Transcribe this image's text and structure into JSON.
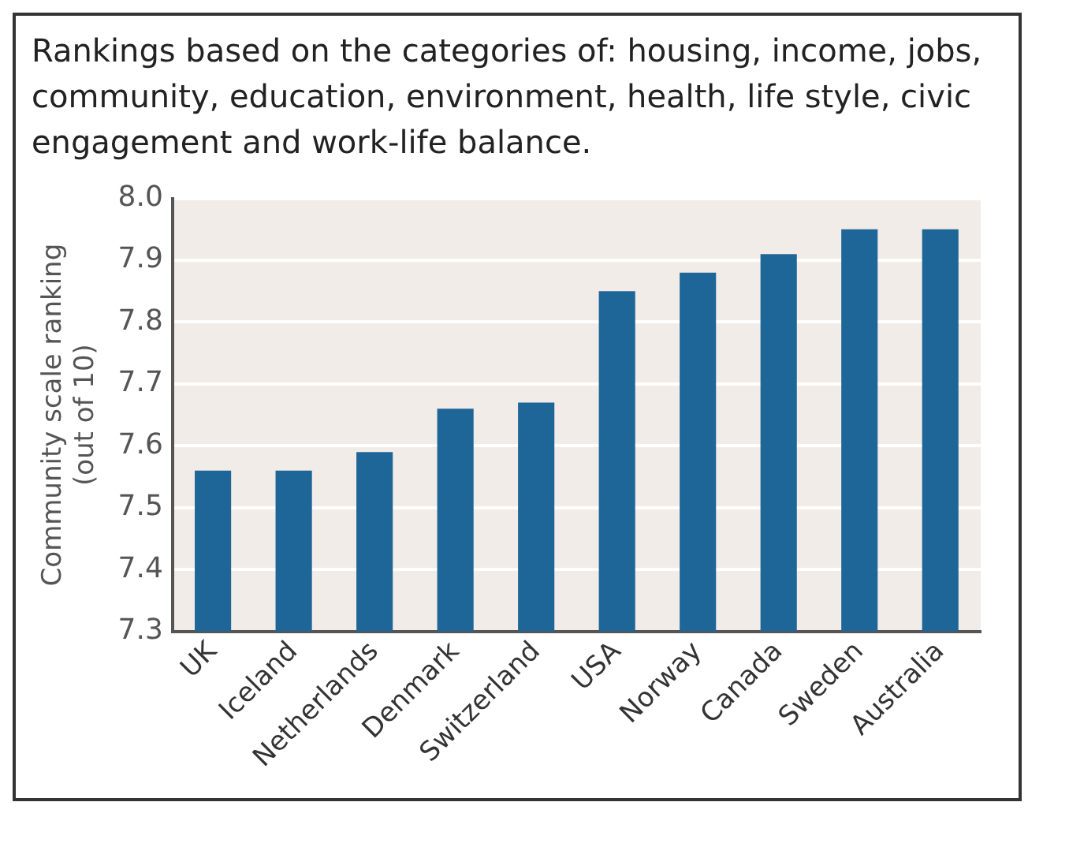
{
  "chart_data": {
    "type": "bar",
    "title": "Rankings based on the categories of: housing, income, jobs, community, education, environment, health, life style, civic engagement and work-life balance.",
    "ylabel": "Community scale ranking\n(out of 10)",
    "categories": [
      "UK",
      "Iceland",
      "Netherlands",
      "Denmark",
      "Switzerland",
      "USA",
      "Norway",
      "Canada",
      "Sweden",
      "Australia"
    ],
    "values": [
      7.56,
      7.56,
      7.59,
      7.66,
      7.67,
      7.85,
      7.88,
      7.91,
      7.95,
      7.95
    ],
    "color": "#1f6698",
    "ylim": [
      7.3,
      8.0
    ],
    "yticks": [
      {
        "value": 7.3,
        "label": "7.3"
      },
      {
        "value": 7.4,
        "label": "7.4"
      },
      {
        "value": 7.5,
        "label": "7.5"
      },
      {
        "value": 7.6,
        "label": "7.6"
      },
      {
        "value": 7.7,
        "label": "7.7"
      },
      {
        "value": 7.8,
        "label": "7.8"
      },
      {
        "value": 7.9,
        "label": "7.9"
      },
      {
        "value": 8.0,
        "label": "8.0"
      }
    ],
    "grid": "y",
    "legend": false
  }
}
